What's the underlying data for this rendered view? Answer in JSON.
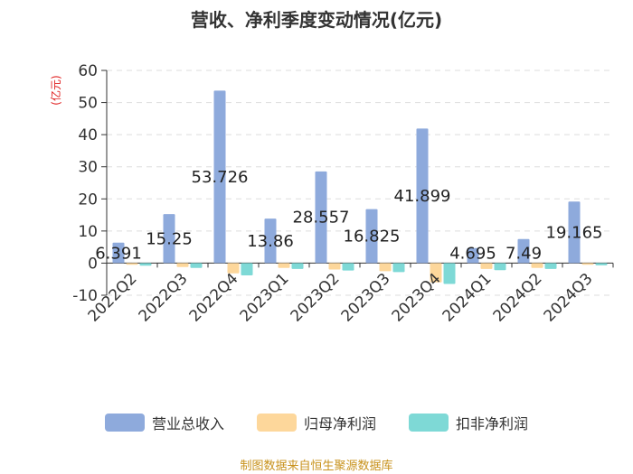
{
  "title": "营收、净利季度变动情况(亿元)",
  "source": "制图数据来自恒生聚源数据库",
  "chart_data": {
    "type": "bar",
    "title": "营收、净利季度变动情况(亿元)",
    "ylabel": "(亿元)",
    "ylim": [
      -10,
      60
    ],
    "yticks": [
      -10,
      0,
      10,
      20,
      30,
      40,
      50,
      60
    ],
    "categories": [
      "2022Q2",
      "2022Q3",
      "2022Q4",
      "2023Q1",
      "2023Q2",
      "2023Q3",
      "2023Q4",
      "2024Q1",
      "2024Q2",
      "2024Q3"
    ],
    "series": [
      {
        "name": "营业总收入",
        "color": "#8eaadc",
        "values": [
          6.391,
          15.25,
          53.726,
          13.86,
          28.557,
          16.825,
          41.899,
          4.695,
          7.49,
          19.165
        ],
        "labels": [
          "6.391",
          "15.25",
          "53.726",
          "13.86",
          "28.557",
          "16.825",
          "41.899",
          "4.695",
          "7.49",
          "19.165"
        ]
      },
      {
        "name": "归母净利润",
        "color": "#fdd79b",
        "values": [
          -0.5,
          -1.2,
          -3.2,
          -1.5,
          -2.0,
          -2.5,
          -6.0,
          -1.8,
          -1.5,
          -0.5
        ]
      },
      {
        "name": "扣非净利润",
        "color": "#7ed9d6",
        "values": [
          -0.8,
          -1.5,
          -3.8,
          -1.8,
          -2.3,
          -2.8,
          -6.5,
          -2.2,
          -1.8,
          -0.7
        ]
      }
    ],
    "legend_position": "bottom",
    "grid": true
  }
}
